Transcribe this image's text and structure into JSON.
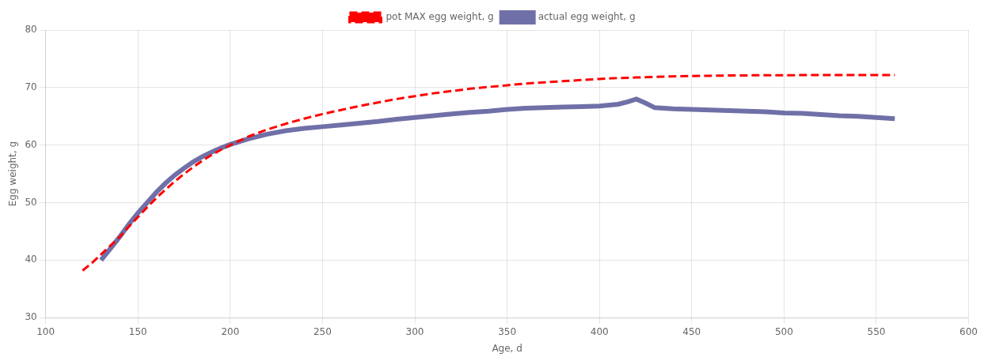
{
  "chart_data": {
    "type": "line",
    "xlabel": "Age, d",
    "ylabel": "Egg weight, g",
    "xlim": [
      100,
      600
    ],
    "ylim": [
      30,
      80
    ],
    "xticks": [
      100,
      150,
      200,
      250,
      300,
      350,
      400,
      450,
      500,
      550,
      600
    ],
    "yticks": [
      30,
      40,
      50,
      60,
      70,
      80
    ],
    "grid": true,
    "legend": "top",
    "series": [
      {
        "name": "pot MAX egg weight, g",
        "color": "#FF0000",
        "line_style": "dashed",
        "x": [
          120,
          125,
          130,
          135,
          140,
          145,
          150,
          155,
          160,
          165,
          170,
          175,
          180,
          185,
          190,
          195,
          200,
          210,
          220,
          230,
          240,
          250,
          260,
          270,
          280,
          290,
          300,
          310,
          320,
          330,
          340,
          350,
          360,
          370,
          380,
          390,
          400,
          410,
          420,
          430,
          440,
          450,
          460,
          470,
          480,
          490,
          500,
          510,
          520,
          530,
          540,
          550,
          560
        ],
        "values": [
          38.2,
          39.5,
          41.0,
          42.5,
          44.0,
          45.8,
          47.5,
          49.2,
          50.8,
          52.3,
          53.7,
          55.0,
          56.2,
          57.3,
          58.3,
          59.2,
          60.0,
          61.5,
          62.7,
          63.7,
          64.6,
          65.4,
          66.1,
          66.8,
          67.4,
          68.0,
          68.5,
          69.0,
          69.4,
          69.8,
          70.1,
          70.4,
          70.7,
          70.9,
          71.1,
          71.3,
          71.5,
          71.65,
          71.75,
          71.85,
          71.95,
          72.0,
          72.05,
          72.1,
          72.12,
          72.14,
          72.15,
          72.16,
          72.17,
          72.18,
          72.18,
          72.18,
          72.18
        ]
      },
      {
        "name": "actual egg weight, g",
        "color": "#7070A8",
        "line_style": "solid",
        "x": [
          130,
          135,
          140,
          145,
          150,
          155,
          160,
          165,
          170,
          175,
          180,
          185,
          190,
          195,
          200,
          210,
          220,
          230,
          240,
          250,
          260,
          270,
          280,
          290,
          300,
          310,
          320,
          330,
          340,
          350,
          360,
          370,
          380,
          390,
          400,
          410,
          415,
          420,
          425,
          430,
          440,
          450,
          460,
          470,
          480,
          490,
          500,
          510,
          520,
          530,
          540,
          550,
          560
        ],
        "values": [
          40.0,
          42.0,
          44.0,
          46.2,
          48.2,
          50.0,
          51.8,
          53.4,
          54.8,
          56.0,
          57.1,
          58.0,
          58.8,
          59.5,
          60.1,
          61.1,
          61.9,
          62.5,
          62.9,
          63.2,
          63.5,
          63.8,
          64.1,
          64.5,
          64.8,
          65.1,
          65.4,
          65.7,
          65.9,
          66.2,
          66.4,
          66.5,
          66.6,
          66.7,
          66.8,
          67.1,
          67.5,
          68.0,
          67.3,
          66.5,
          66.3,
          66.2,
          66.1,
          66.0,
          65.9,
          65.8,
          65.6,
          65.5,
          65.3,
          65.1,
          65.0,
          64.8,
          64.6
        ]
      }
    ]
  }
}
